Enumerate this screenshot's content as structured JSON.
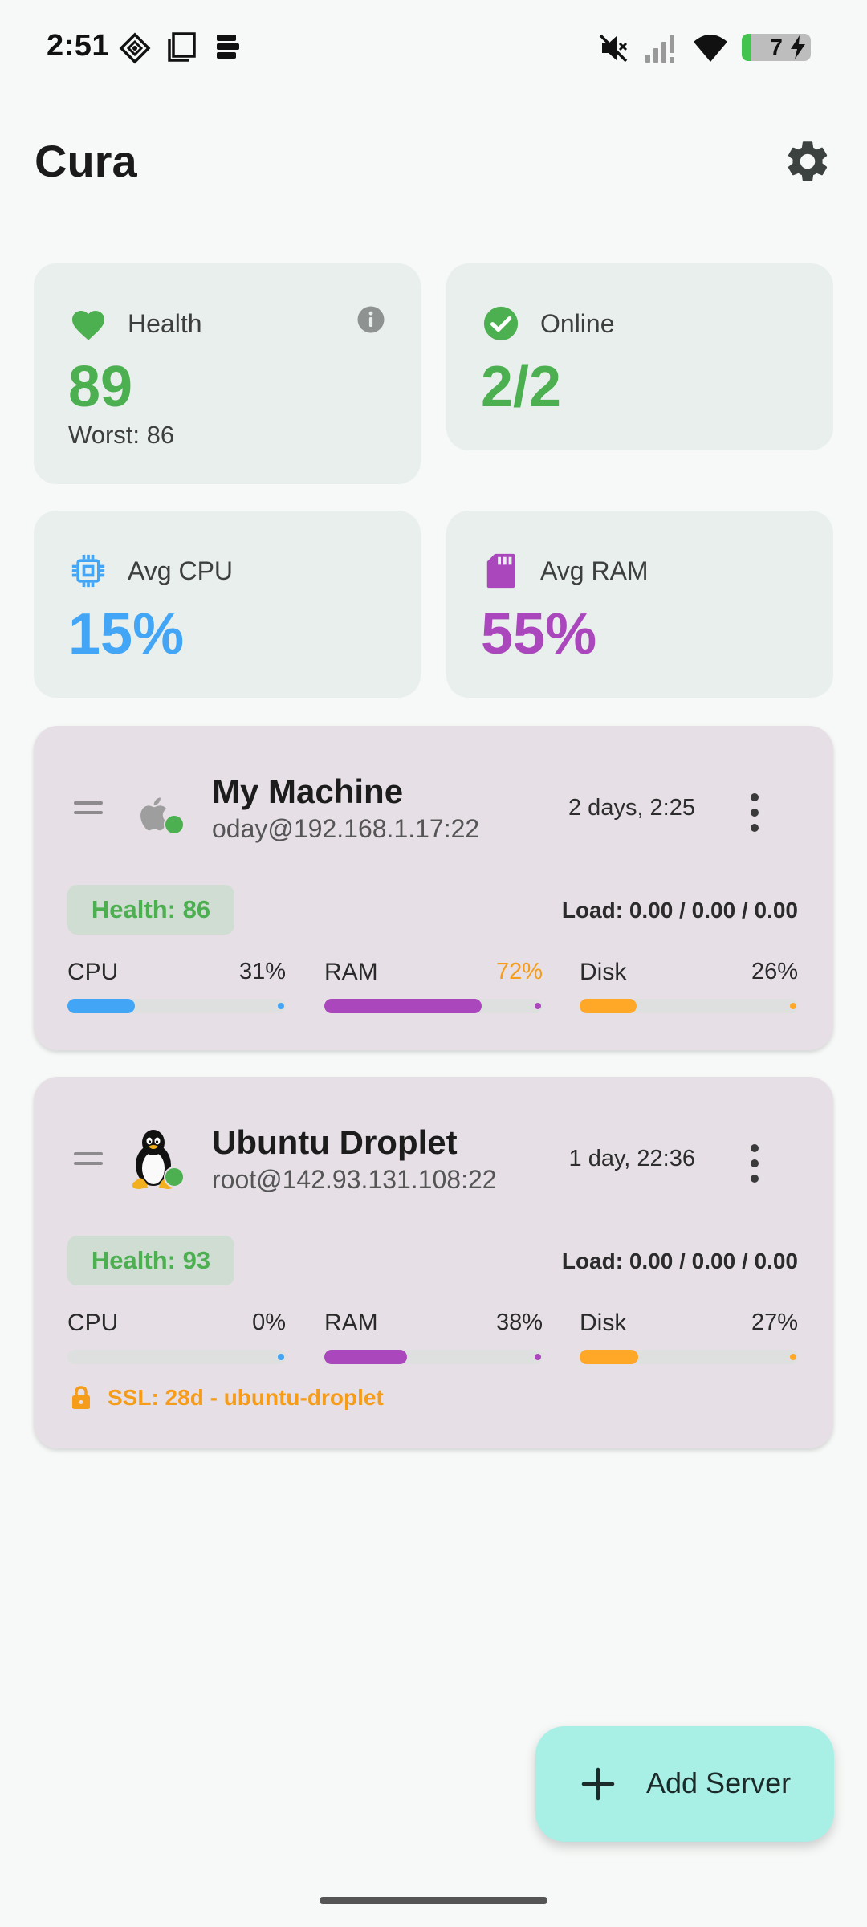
{
  "status_bar": {
    "time": "2:51",
    "battery_level": "7",
    "icons": [
      "location-diamond-icon",
      "square-icon",
      "stack-icon",
      "mute-icon",
      "signal-icon",
      "wifi-icon",
      "battery-icon",
      "charging-icon"
    ]
  },
  "header": {
    "title": "Cura",
    "settings_icon": "gear-icon"
  },
  "summary": {
    "health": {
      "label": "Health",
      "value": "89",
      "sub": "Worst: 86",
      "icon": "heart-icon",
      "color": "#4caf50"
    },
    "online": {
      "label": "Online",
      "value": "2/2",
      "icon": "check-circle-icon",
      "color": "#4caf50"
    },
    "cpu": {
      "label": "Avg CPU",
      "value": "15%",
      "icon": "cpu-chip-icon",
      "color": "#42a5f5"
    },
    "ram": {
      "label": "Avg RAM",
      "value": "55%",
      "icon": "memory-card-icon",
      "color": "#ab47bc"
    }
  },
  "servers": [
    {
      "name": "My Machine",
      "address": "oday@192.168.1.17:22",
      "uptime": "2 days,  2:25",
      "os_icon": "apple-icon",
      "health": "Health: 86",
      "load": "Load: 0.00 / 0.00 / 0.00",
      "metrics": [
        {
          "label": "CPU",
          "value": "31%",
          "fraction": 0.31,
          "color": "#42a5f5"
        },
        {
          "label": "RAM",
          "value": "72%",
          "fraction": 0.72,
          "color": "#ab47bc",
          "value_color": "#f59c1a"
        },
        {
          "label": "Disk",
          "value": "26%",
          "fraction": 0.26,
          "color": "#ffa726"
        }
      ]
    },
    {
      "name": "Ubuntu Droplet",
      "address": "root@142.93.131.108:22",
      "uptime": "1 day, 22:36",
      "os_icon": "linux-penguin-icon",
      "health": "Health: 93",
      "load": "Load: 0.00 / 0.00 / 0.00",
      "metrics": [
        {
          "label": "CPU",
          "value": "0%",
          "fraction": 0.0,
          "color": "#42a5f5"
        },
        {
          "label": "RAM",
          "value": "38%",
          "fraction": 0.38,
          "color": "#ab47bc"
        },
        {
          "label": "Disk",
          "value": "27%",
          "fraction": 0.27,
          "color": "#ffa726"
        }
      ],
      "ssl": "SSL: 28d - ubuntu-droplet"
    }
  ],
  "fab": {
    "label": "Add Server",
    "icon": "plus-icon"
  }
}
